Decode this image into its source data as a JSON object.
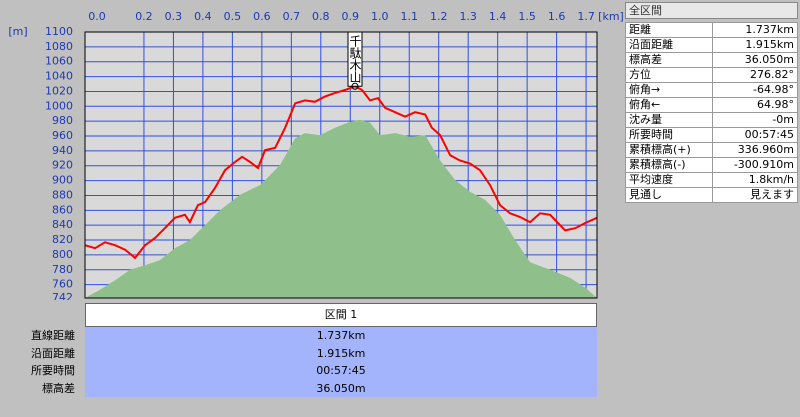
{
  "chart_data": {
    "type": "line",
    "xlim": [
      0,
      1.737
    ],
    "ylim": [
      742,
      1100
    ],
    "x_unit": "[km]",
    "y_unit": "[m]",
    "xticks": [
      {
        "value": 0,
        "label": "0.0"
      },
      0.2,
      0.3,
      0.4,
      0.5,
      0.6,
      0.7,
      0.8,
      0.9,
      {
        "value": 1,
        "label": "1.0"
      },
      1.1,
      1.2,
      1.3,
      1.4,
      1.5,
      1.6,
      1.7
    ],
    "yticks": [
      742,
      760,
      780,
      800,
      820,
      840,
      860,
      880,
      900,
      920,
      940,
      960,
      980,
      1000,
      1020,
      1040,
      1060,
      1080,
      1100
    ],
    "grid": true,
    "series": [
      {
        "kind": "area",
        "color": "#8fbf8a",
        "x": [
          0,
          0.051,
          0.102,
          0.153,
          0.204,
          0.254,
          0.305,
          0.356,
          0.407,
          0.458,
          0.526,
          0.594,
          0.662,
          0.713,
          0.746,
          0.797,
          0.848,
          0.899,
          0.933,
          0.967,
          1.001,
          1.052,
          1.103,
          1.154,
          1.205,
          1.255,
          1.306,
          1.357,
          1.408,
          1.459,
          1.51,
          1.578,
          1.646,
          1.697,
          1.737
        ],
        "values": [
          742,
          753,
          766,
          780,
          786,
          793,
          809,
          820,
          840,
          860,
          881,
          894,
          921,
          957,
          964,
          961,
          971,
          979,
          982,
          978,
          961,
          964,
          959,
          961,
          927,
          901,
          885,
          874,
          854,
          820,
          790,
          780,
          769,
          756,
          742
        ]
      },
      {
        "kind": "line",
        "color": "#ff0000",
        "x": [
          0,
          0.034,
          0.068,
          0.102,
          0.136,
          0.17,
          0.204,
          0.238,
          0.271,
          0.305,
          0.339,
          0.356,
          0.383,
          0.407,
          0.441,
          0.475,
          0.509,
          0.533,
          0.56,
          0.587,
          0.611,
          0.645,
          0.679,
          0.713,
          0.746,
          0.78,
          0.814,
          0.848,
          0.882,
          0.916,
          0.94,
          0.967,
          0.994,
          1.018,
          1.052,
          1.086,
          1.12,
          1.154,
          1.177,
          1.205,
          1.239,
          1.272,
          1.306,
          1.34,
          1.374,
          1.408,
          1.442,
          1.476,
          1.51,
          1.544,
          1.578,
          1.595,
          1.629,
          1.663,
          1.697,
          1.737
        ],
        "values": [
          813,
          809,
          817,
          813,
          807,
          796,
          813,
          823,
          836,
          850,
          854,
          844,
          867,
          871,
          890,
          914,
          925,
          932,
          925,
          917,
          941,
          944,
          971,
          1004,
          1008,
          1006,
          1013,
          1018,
          1022,
          1027,
          1022,
          1008,
          1011,
          998,
          992,
          986,
          992,
          989,
          971,
          961,
          934,
          927,
          923,
          914,
          894,
          867,
          856,
          851,
          844,
          856,
          854,
          847,
          833,
          836,
          843,
          850
        ]
      }
    ],
    "annotations": [
      {
        "text": "千駄木山",
        "x": 0.916,
        "y": 1027
      }
    ]
  },
  "section_table": {
    "header": "区間 1",
    "rows": [
      [
        "直線距離",
        "1.737km"
      ],
      [
        "沿面距離",
        "1.915km"
      ],
      [
        "所要時間",
        "00:57:45"
      ],
      [
        "標高差",
        "36.050m"
      ]
    ]
  },
  "side_panel": {
    "title": "全区間",
    "rows": [
      [
        "距離",
        "1.737km"
      ],
      [
        "沿面距離",
        "1.915km"
      ],
      [
        "標高差",
        "36.050m"
      ],
      [
        "方位",
        "276.82°"
      ],
      [
        "俯角→",
        "-64.98°"
      ],
      [
        "俯角←",
        "64.98°"
      ],
      [
        "沈み量",
        "-0m"
      ],
      [
        "所要時間",
        "00:57:45"
      ],
      [
        "累積標高(+)",
        "336.960m"
      ],
      [
        "累積標高(-)",
        "-300.910m"
      ],
      [
        "平均速度",
        "1.8km/h"
      ],
      [
        "見通し",
        "見えます"
      ]
    ]
  }
}
